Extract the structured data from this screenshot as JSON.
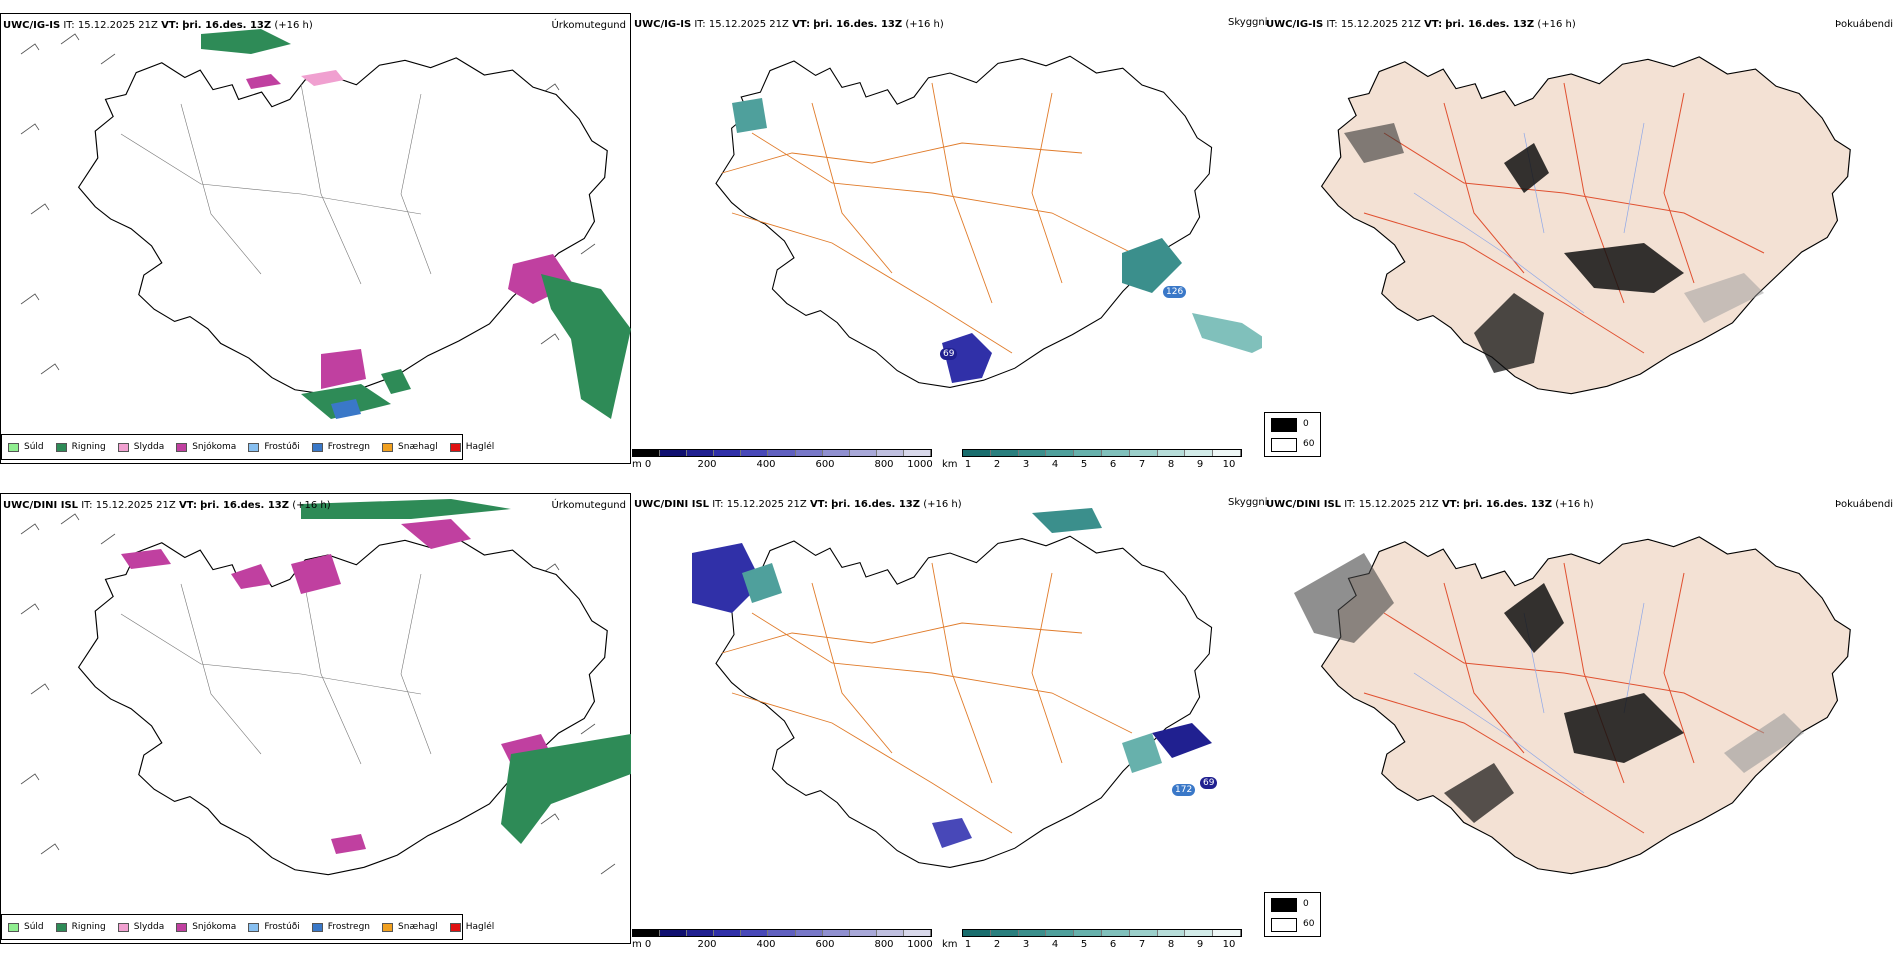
{
  "rows": [
    {
      "model": "UWC/IG-IS",
      "it_label": "IT:",
      "it_value": "15.12.2025 21Z",
      "vt_label": "VT:",
      "vt_value": "þri. 16.des. 13Z",
      "lead": "(+16 h)"
    },
    {
      "model": "UWC/DINI ISL",
      "it_label": "IT:",
      "it_value": "15.12.2025 21Z",
      "vt_label": "VT:",
      "vt_value": "þri. 16.des. 13Z",
      "lead": "(+16 h)"
    }
  ],
  "panel_titles": {
    "precip": "Úrkomutegund",
    "visibility": "Skyggni",
    "fog": "Þokuábendi"
  },
  "precip_legend": [
    {
      "label": "Súld",
      "color": "#90ee90"
    },
    {
      "label": "Rigning",
      "color": "#2e8b57"
    },
    {
      "label": "Slydda",
      "color": "#f0a0d0"
    },
    {
      "label": "Snjókoma",
      "color": "#c040a0"
    },
    {
      "label": "Frostúði",
      "color": "#87bff0"
    },
    {
      "label": "Frostregn",
      "color": "#3a78c8"
    },
    {
      "label": "Snæhagl",
      "color": "#f0a020"
    },
    {
      "label": "Haglél",
      "color": "#e01010"
    }
  ],
  "ceiling_bar": {
    "unit": "m",
    "ticks": [
      "0",
      "200",
      "400",
      "600",
      "800",
      "1000"
    ],
    "colors": [
      "#000000",
      "#101070",
      "#202090",
      "#3030a8",
      "#4848b8",
      "#6060c0",
      "#7878c8",
      "#9090d0",
      "#a8a8d8",
      "#c0c0e0",
      "#d8d8ea"
    ]
  },
  "vis_bar": {
    "unit": "km",
    "ticks": [
      "1",
      "2",
      "3",
      "4",
      "5",
      "6",
      "7",
      "8",
      "9",
      "10"
    ],
    "colors": [
      "#1a6e6e",
      "#2a7f7e",
      "#3b8f8c",
      "#4fa09c",
      "#67b1ac",
      "#80c0bb",
      "#9bcfca",
      "#b7ddd9",
      "#d2ebe8",
      "#eef7f6"
    ]
  },
  "fog_legend": [
    {
      "label": "0",
      "color": "#000000"
    },
    {
      "label": "60",
      "color": "#ffffff"
    }
  ],
  "precip_cells": [
    {
      "label": "69",
      "row": 0
    },
    {
      "label": "126",
      "row": 0
    },
    {
      "label": "69",
      "row": 1
    },
    {
      "label": "172",
      "row": 1
    }
  ],
  "colors": {
    "land_fog": "#f3e1d4",
    "roads": "#e07b2a",
    "rivers": "#8fa8e8",
    "coast": "#000000"
  }
}
